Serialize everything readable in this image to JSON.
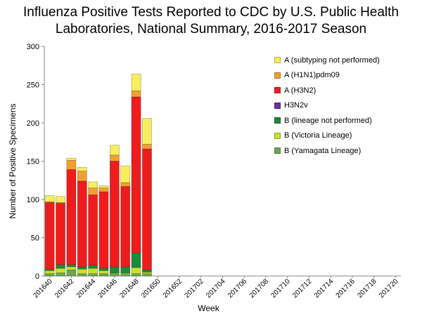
{
  "chart_data": {
    "type": "bar",
    "stacked": true,
    "title_line1": "Influenza Positive Tests Reported to CDC by U.S. Public Health",
    "title_line2": "Laboratories, National Summary, 2016-2017 Season",
    "xlabel": "Week",
    "ylabel": "Number of Positive Specimens",
    "ylim": [
      0,
      300
    ],
    "yticks": [
      0,
      50,
      100,
      150,
      200,
      250,
      300
    ],
    "categories": [
      "201640",
      "201641",
      "201642",
      "201643",
      "201644",
      "201645",
      "201646",
      "201647",
      "201648",
      "201649",
      "201650",
      "201651",
      "201652",
      "201701",
      "201702",
      "201703",
      "201704",
      "201705",
      "201706",
      "201707",
      "201708",
      "201709",
      "201710",
      "201711",
      "201712",
      "201713",
      "201714",
      "201715",
      "201716",
      "201717",
      "201718",
      "201719",
      "201720"
    ],
    "tick_labels": [
      "201640",
      "201642",
      "201644",
      "201646",
      "201648",
      "201650",
      "201652",
      "201702",
      "201704",
      "201706",
      "201708",
      "201710",
      "201712",
      "201714",
      "201716",
      "201718",
      "201720"
    ],
    "series": [
      {
        "name": "B (Yamagata Lineage)",
        "color": "#6aa84f",
        "values": [
          3,
          4,
          8,
          3,
          3,
          3,
          3,
          3,
          3,
          3,
          0,
          0,
          0,
          0,
          0,
          0,
          0,
          0,
          0,
          0,
          0,
          0,
          0,
          0,
          0,
          0,
          0,
          0,
          0,
          0,
          0,
          0,
          0
        ]
      },
      {
        "name": "B (Victoria Lineage)",
        "color": "#c9e02f",
        "values": [
          4,
          6,
          4,
          6,
          7,
          4,
          1,
          1,
          8,
          2,
          0,
          0,
          0,
          0,
          0,
          0,
          0,
          0,
          0,
          0,
          0,
          0,
          0,
          0,
          0,
          0,
          0,
          0,
          0,
          0,
          0,
          0,
          0
        ]
      },
      {
        "name": "B (lineage not performed)",
        "color": "#1a8a3c",
        "values": [
          2,
          5,
          3,
          3,
          4,
          3,
          8,
          8,
          19,
          3,
          0,
          0,
          0,
          0,
          0,
          0,
          0,
          0,
          0,
          0,
          0,
          0,
          0,
          0,
          0,
          0,
          0,
          0,
          0,
          0,
          0,
          0,
          0
        ]
      },
      {
        "name": "H3N2v",
        "color": "#7030a0",
        "values": [
          0,
          0,
          0,
          0,
          0,
          0,
          0,
          0,
          0,
          0,
          0,
          0,
          0,
          0,
          0,
          0,
          0,
          0,
          0,
          0,
          0,
          0,
          0,
          0,
          0,
          0,
          0,
          0,
          0,
          0,
          0,
          0,
          0
        ]
      },
      {
        "name": "A (H3N2)",
        "color": "#ee1c1c",
        "values": [
          87,
          80,
          124,
          112,
          92,
          100,
          138,
          105,
          204,
          158,
          0,
          0,
          0,
          0,
          0,
          0,
          0,
          0,
          0,
          0,
          0,
          0,
          0,
          0,
          0,
          0,
          0,
          0,
          0,
          0,
          0,
          0,
          0
        ]
      },
      {
        "name": "A (H1N1)pdm09",
        "color": "#f0a030",
        "values": [
          1,
          1,
          12,
          13,
          9,
          5,
          8,
          5,
          8,
          6,
          0,
          0,
          0,
          0,
          0,
          0,
          0,
          0,
          0,
          0,
          0,
          0,
          0,
          0,
          0,
          0,
          0,
          0,
          0,
          0,
          0,
          0,
          0
        ]
      },
      {
        "name": "A (subtyping not performed)",
        "color": "#f7ee5e",
        "values": [
          8,
          8,
          3,
          5,
          8,
          3,
          13,
          22,
          22,
          34,
          0,
          0,
          0,
          0,
          0,
          0,
          0,
          0,
          0,
          0,
          0,
          0,
          0,
          0,
          0,
          0,
          0,
          0,
          0,
          0,
          0,
          0,
          0
        ]
      }
    ],
    "legend_order": [
      "A (subtyping not performed)",
      "A (H1N1)pdm09",
      "A (H3N2)",
      "H3N2v",
      "B (lineage not performed)",
      "B (Victoria Lineage)",
      "B (Yamagata Lineage)"
    ],
    "legend_placement": "top-right"
  }
}
